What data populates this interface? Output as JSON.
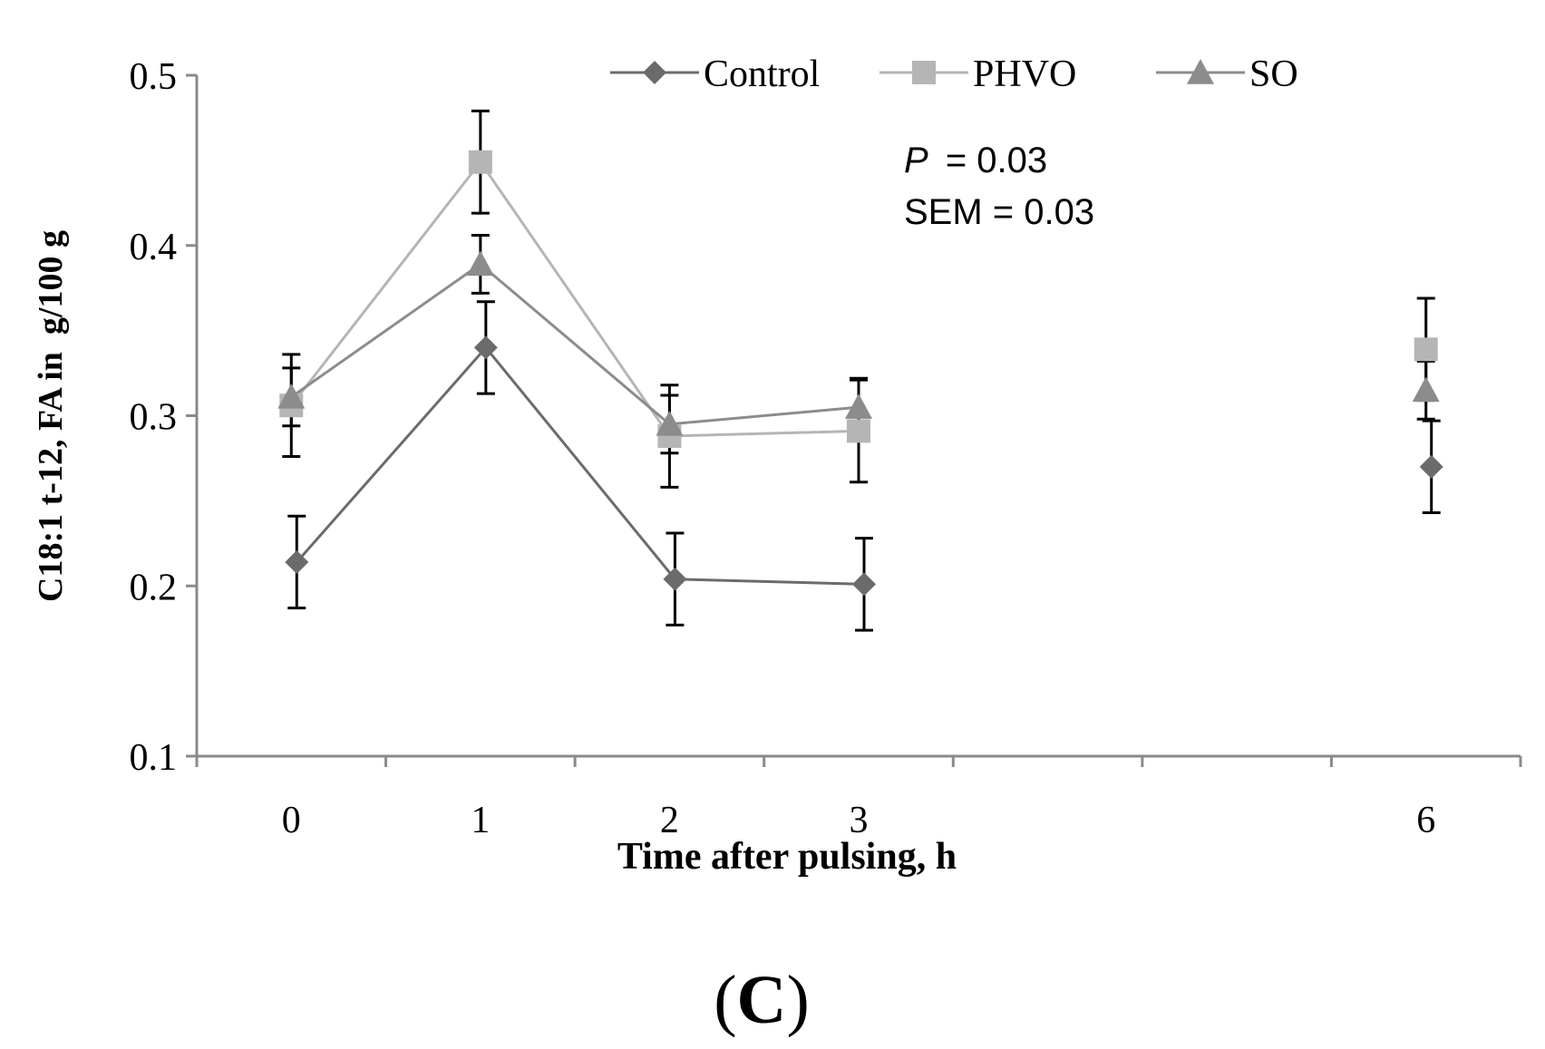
{
  "chart_data": {
    "type": "line",
    "panel_label": "C",
    "xlabel": "Time after pulsing, h",
    "ylabel": "C18:1 t-12, FA in  g/100 g",
    "ylim": [
      0.1,
      0.5
    ],
    "yticks": [
      "0.1",
      "0.2",
      "0.3",
      "0.4",
      "0.5"
    ],
    "x_categories": [
      "0",
      "1",
      "2",
      "3",
      "",
      "",
      "6"
    ],
    "stats": {
      "p_label": "P",
      "p_value": "= 0.03",
      "sem": "SEM = 0.03"
    },
    "legend_position": "top",
    "series": [
      {
        "name": "Control",
        "marker": "diamond",
        "color": "#6b6b6b",
        "points": [
          {
            "x": "0",
            "y": 0.214,
            "err": 0.027
          },
          {
            "x": "1",
            "y": 0.34,
            "err": 0.027
          },
          {
            "x": "2",
            "y": 0.204,
            "err": 0.027
          },
          {
            "x": "3",
            "y": 0.201,
            "err": 0.027
          },
          {
            "x": "6",
            "y": 0.27,
            "err": 0.027
          }
        ],
        "line_break_before": "6"
      },
      {
        "name": "PHVO",
        "marker": "square",
        "color": "#b5b5b5",
        "points": [
          {
            "x": "0",
            "y": 0.306,
            "err": 0.03
          },
          {
            "x": "1",
            "y": 0.449,
            "err": 0.03
          },
          {
            "x": "2",
            "y": 0.288,
            "err": 0.03
          },
          {
            "x": "3",
            "y": 0.291,
            "err": 0.03
          },
          {
            "x": "6",
            "y": 0.339,
            "err": 0.03
          }
        ],
        "line_break_before": "6"
      },
      {
        "name": "SO",
        "marker": "triangle",
        "color": "#8c8c8c",
        "points": [
          {
            "x": "0",
            "y": 0.311,
            "err": 0.017
          },
          {
            "x": "1",
            "y": 0.389,
            "err": 0.017
          },
          {
            "x": "2",
            "y": 0.295,
            "err": 0.017
          },
          {
            "x": "3",
            "y": 0.305,
            "err": 0.017
          },
          {
            "x": "6",
            "y": 0.315,
            "err": 0.017
          }
        ],
        "line_break_before": "6"
      }
    ]
  }
}
